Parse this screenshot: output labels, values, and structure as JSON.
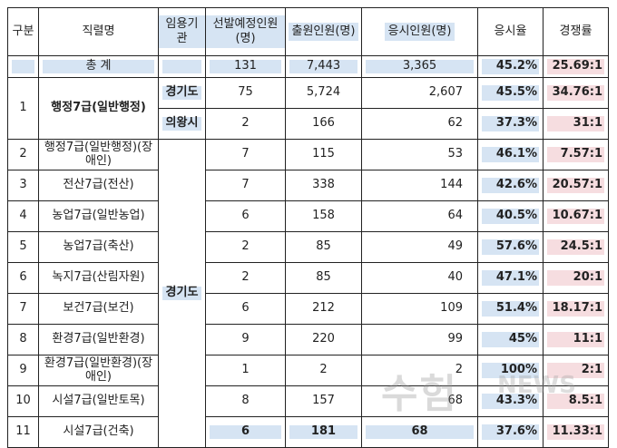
{
  "headers": {
    "gubun": "구분",
    "jikryeol": "직렬명",
    "imyong": "임용기관",
    "seonbal": "선발예정인원(명)",
    "chulwon": "출원인원(명)",
    "eungsi": "응시인원(명)",
    "eungsiyul": "응시율",
    "gyeongjaeng": "경쟁률"
  },
  "total": {
    "label": "총  계",
    "seonbal": "131",
    "chulwon": "7,443",
    "eungsi": "3,365",
    "eungsiyul": "45.2%",
    "gyeongjaeng": "25.69:1"
  },
  "rows": [
    {
      "no": "1",
      "name": "행정7급(일반행정)",
      "agency": "경기도",
      "seonbal": "75",
      "chulwon": "5,724",
      "eungsi": "2,607",
      "rate": "45.5%",
      "comp": "34.76:1"
    },
    {
      "no": "",
      "name": "",
      "agency": "의왕시",
      "seonbal": "2",
      "chulwon": "166",
      "eungsi": "62",
      "rate": "37.3%",
      "comp": "31:1"
    },
    {
      "no": "2",
      "name": "행정7급(일반행정)(장애인)",
      "agency": "경기도",
      "seonbal": "7",
      "chulwon": "115",
      "eungsi": "53",
      "rate": "46.1%",
      "comp": "7.57:1"
    },
    {
      "no": "3",
      "name": "전산7급(전산)",
      "seonbal": "7",
      "chulwon": "338",
      "eungsi": "144",
      "rate": "42.6%",
      "comp": "20.57:1"
    },
    {
      "no": "4",
      "name": "농업7급(일반농업)",
      "seonbal": "6",
      "chulwon": "158",
      "eungsi": "64",
      "rate": "40.5%",
      "comp": "10.67:1"
    },
    {
      "no": "5",
      "name": "농업7급(축산)",
      "seonbal": "2",
      "chulwon": "85",
      "eungsi": "49",
      "rate": "57.6%",
      "comp": "24.5:1"
    },
    {
      "no": "6",
      "name": "녹지7급(산림자원)",
      "seonbal": "2",
      "chulwon": "85",
      "eungsi": "40",
      "rate": "47.1%",
      "comp": "20:1"
    },
    {
      "no": "7",
      "name": "보건7급(보건)",
      "seonbal": "6",
      "chulwon": "212",
      "eungsi": "109",
      "rate": "51.4%",
      "comp": "18.17:1"
    },
    {
      "no": "8",
      "name": "환경7급(일반환경)",
      "seonbal": "9",
      "chulwon": "220",
      "eungsi": "99",
      "rate": "45%",
      "comp": "11:1"
    },
    {
      "no": "9",
      "name": "환경7급(일반환경)(장애인)",
      "seonbal": "1",
      "chulwon": "2",
      "eungsi": "2",
      "rate": "100%",
      "comp": "2:1"
    },
    {
      "no": "10",
      "name": "시설7급(일반토목)",
      "seonbal": "8",
      "chulwon": "157",
      "eungsi": "68",
      "rate": "43.3%",
      "comp": "8.5:1"
    },
    {
      "no": "11",
      "name": "시설7급(건축)",
      "seonbal": "6",
      "chulwon": "181",
      "eungsi": "68",
      "rate": "37.6%",
      "comp": "11.33:1"
    }
  ],
  "colors": {
    "highlight_blue": "#d6e4f3",
    "highlight_pink": "#f6dde0",
    "border": "#222222"
  }
}
